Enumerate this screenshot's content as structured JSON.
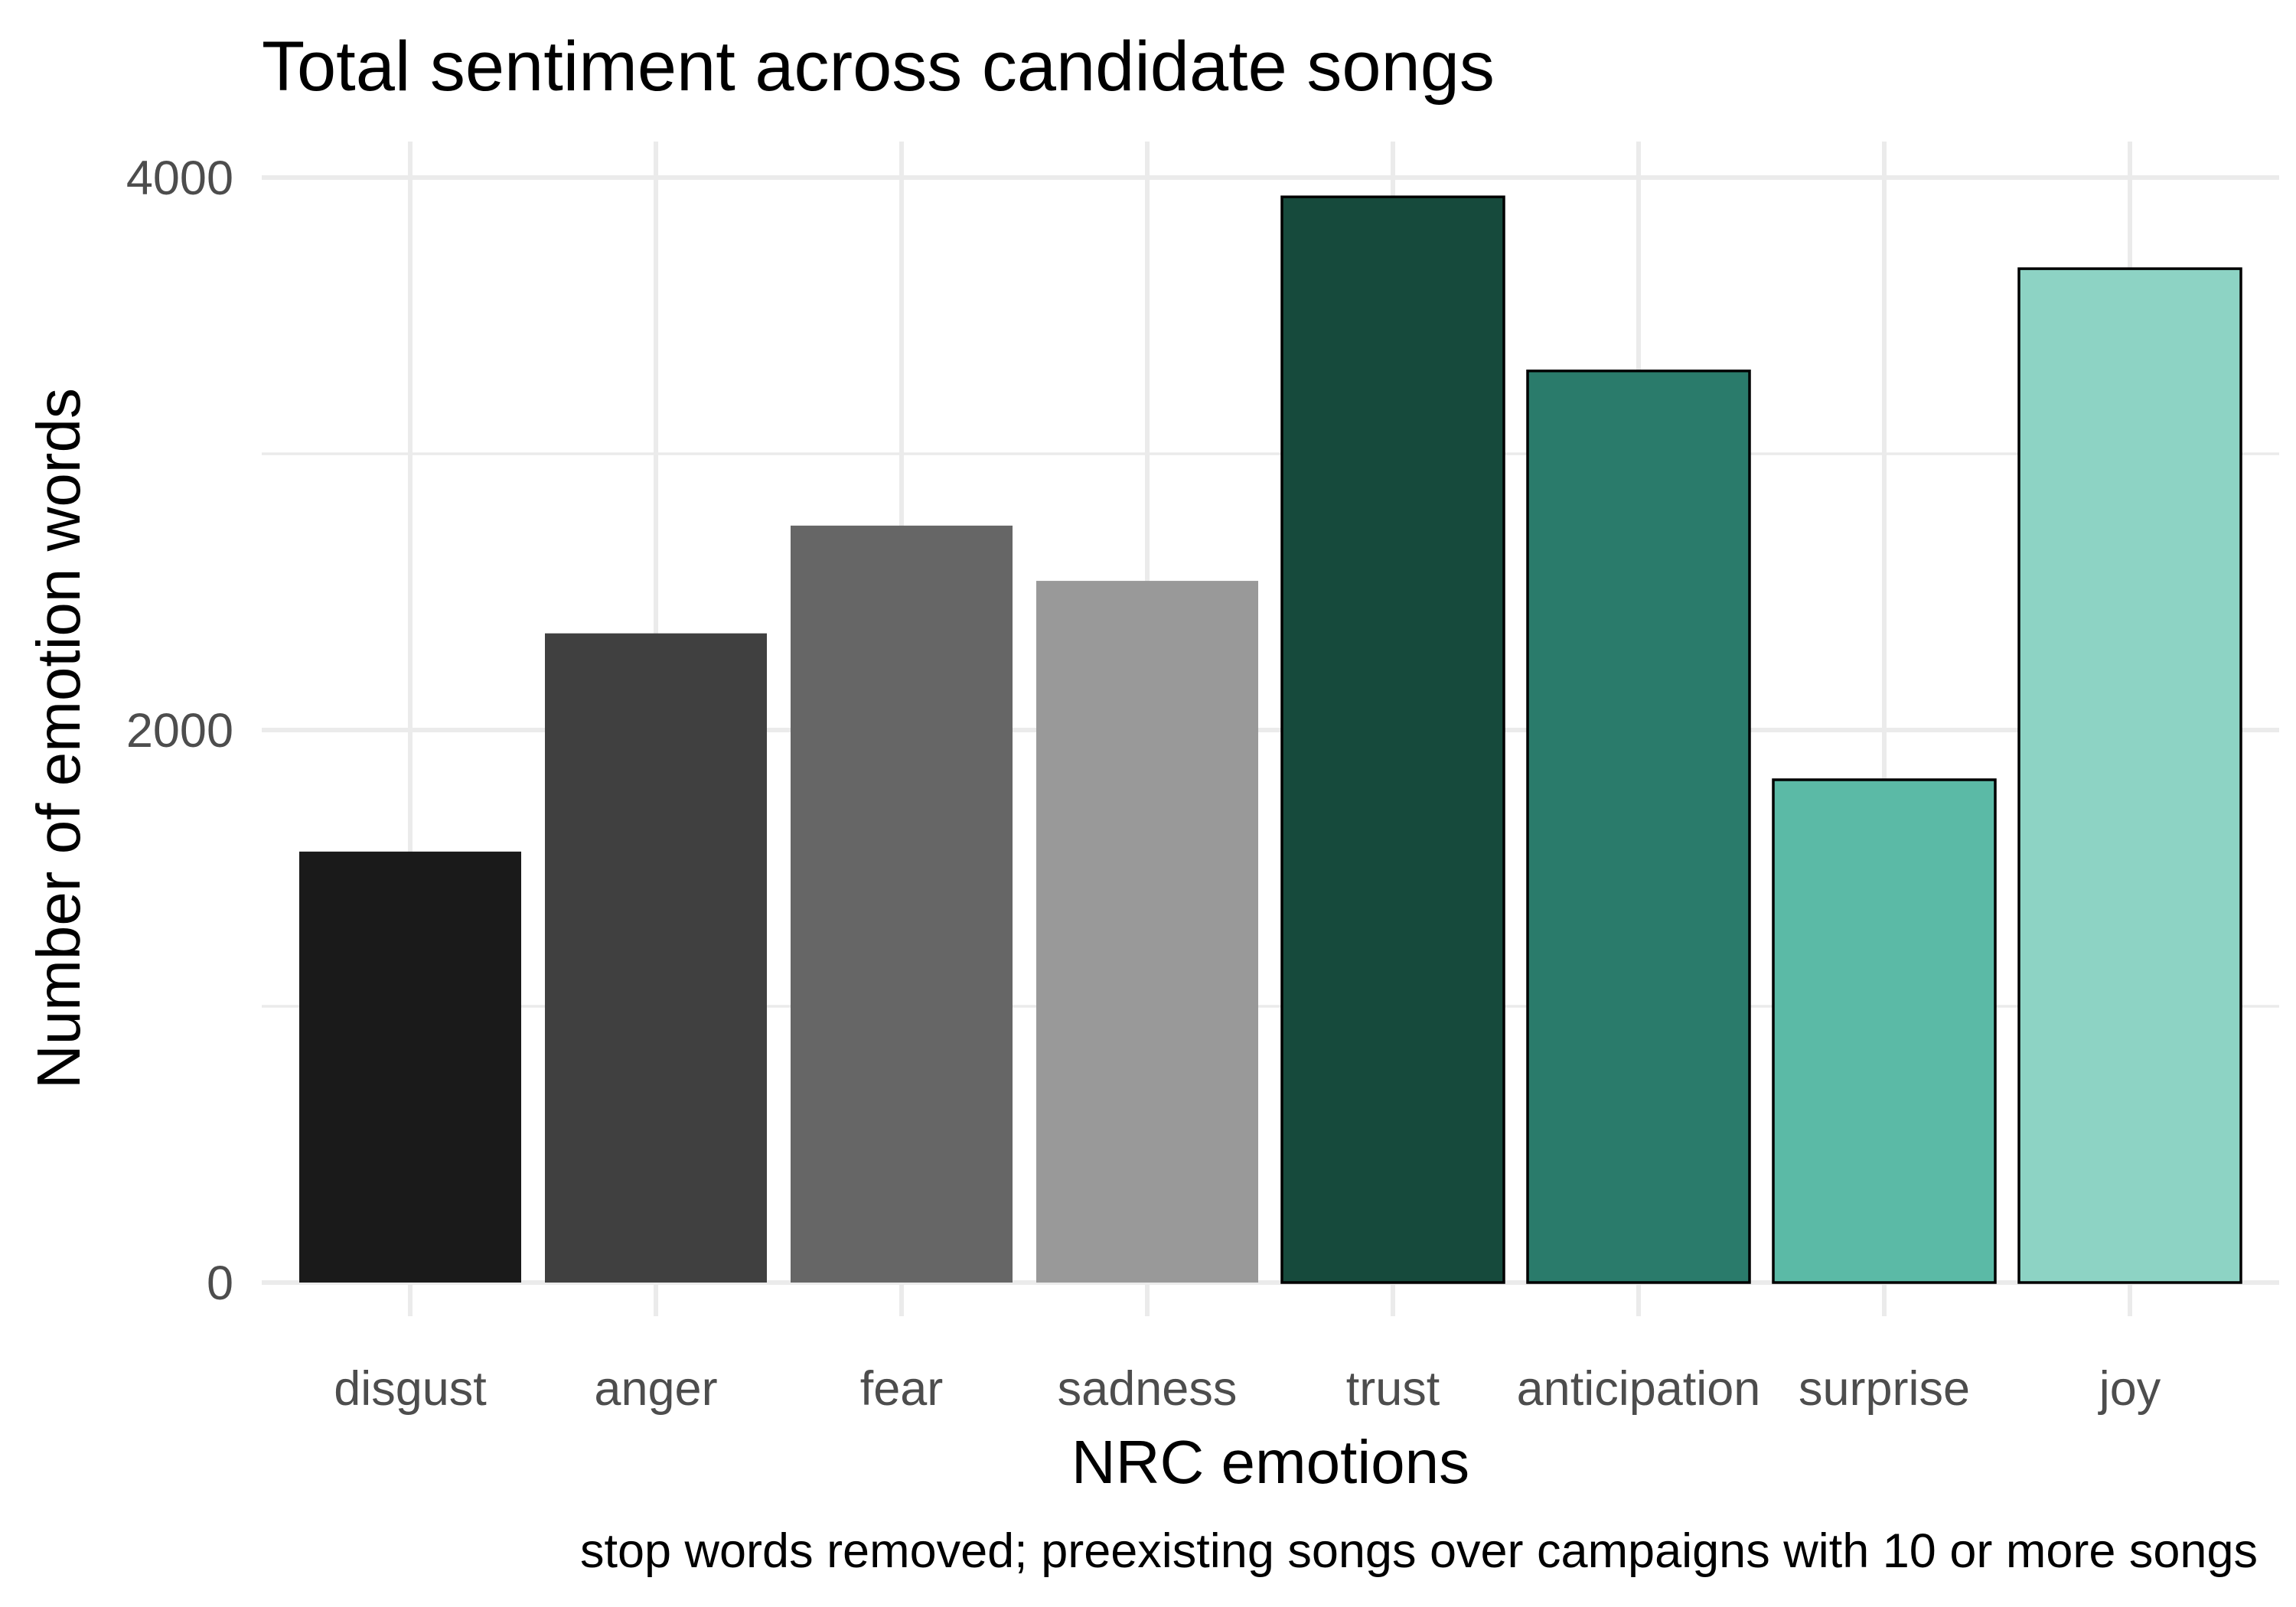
{
  "chart_data": {
    "type": "bar",
    "title": "Total sentiment across candidate songs",
    "xlabel": "NRC emotions",
    "ylabel": "Number of emotion words",
    "caption": "stop words removed; preexisting songs over campaigns with 10 or more songs",
    "categories": [
      "disgust",
      "anger",
      "fear",
      "sadness",
      "trust",
      "anticipation",
      "surprise",
      "joy"
    ],
    "values": [
      1560,
      2350,
      2740,
      2540,
      3930,
      3300,
      1820,
      3670
    ],
    "colors": [
      "#1a1a1a",
      "#404040",
      "#666666",
      "#999999",
      "#164a3c",
      "#2a7b6b",
      "#5bbaa6",
      "#8dd3c4"
    ],
    "outlined": [
      false,
      false,
      false,
      false,
      true,
      true,
      true,
      true
    ],
    "ylim": [
      0,
      4000
    ],
    "yticks": [
      0,
      2000,
      4000
    ],
    "yminor": [
      1000,
      3000
    ],
    "grid": true,
    "legend": "none"
  }
}
